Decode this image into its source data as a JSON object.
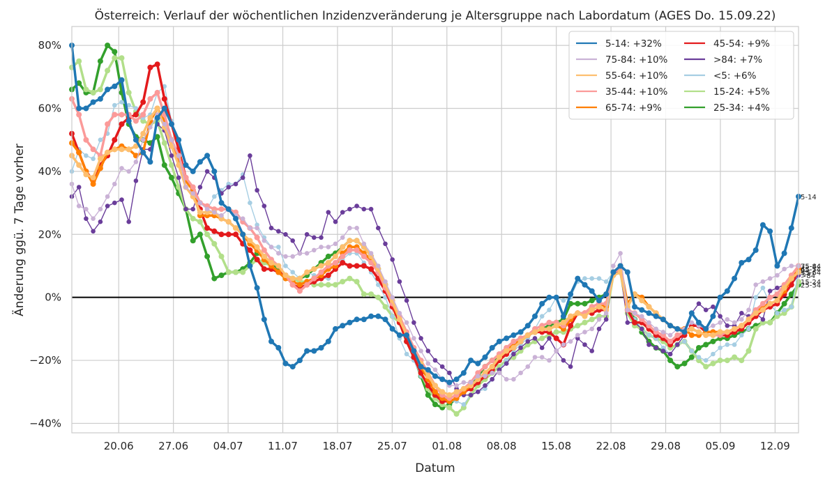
{
  "chart_data": {
    "type": "line",
    "title": "Österreich: Verlauf der wöchentlichen Inzidenzveränderung je Altersgruppe nach Labordatum (AGES Do. 15.09.22)",
    "xlabel": "Datum",
    "ylabel": "Änderung ggü. 7 Tage vorher",
    "x_ticks": [
      "20.06",
      "27.06",
      "04.07",
      "11.07",
      "18.07",
      "25.07",
      "01.08",
      "08.08",
      "15.08",
      "22.08",
      "29.08",
      "05.09",
      "12.09"
    ],
    "y_ticks": [
      "−40%",
      "−20%",
      "0%",
      "20%",
      "40%",
      "60%",
      "80%"
    ],
    "y_tick_values": [
      -40,
      -20,
      0,
      20,
      40,
      60,
      80
    ],
    "ylim": [
      -43,
      86
    ],
    "x_start": "2022-06-14",
    "x_end": "2022-09-15",
    "grid": true,
    "legend_position": "top-right",
    "series": [
      {
        "name": "5-14: +32%",
        "end_label": "5-14",
        "color": "#1f77b4",
        "bold": true,
        "values": [
          80,
          60,
          60,
          62,
          63,
          66,
          67,
          69,
          56,
          50,
          46,
          43,
          57,
          60,
          55,
          50,
          42,
          40,
          43,
          45,
          40,
          30,
          28,
          25,
          20,
          10,
          3,
          -7,
          -14,
          -16,
          -21,
          -22,
          -20,
          -17,
          -17,
          -16,
          -14,
          -10,
          -9,
          -8,
          -7,
          -7,
          -6,
          -6,
          -7,
          -10,
          -12,
          -12,
          -17,
          -22,
          -23,
          -25,
          -26,
          -27,
          -26,
          -24,
          -20,
          -21,
          -19,
          -16,
          -14,
          -13,
          -12,
          -11,
          -9,
          -6,
          -2,
          0,
          0,
          -6,
          1,
          6,
          4,
          2,
          -1,
          1,
          8,
          10,
          8,
          -3,
          -4,
          -5,
          -6,
          -7,
          -9,
          -10,
          -11,
          -5,
          -8,
          -10,
          -6,
          0,
          2,
          6,
          11,
          12,
          15,
          23,
          21,
          10,
          14,
          22,
          32
        ]
      },
      {
        "name": "75-84: +10%",
        "end_label": "75-84",
        "color": "#cab2d6",
        "bold": false,
        "values": [
          36,
          29,
          28,
          25,
          28,
          32,
          36,
          41,
          40,
          43,
          50,
          54,
          58,
          55,
          50,
          45,
          35,
          33,
          30,
          28,
          27,
          26,
          28,
          26,
          25,
          22,
          22,
          18,
          16,
          14,
          13,
          13,
          14,
          14,
          15,
          16,
          16,
          17,
          19,
          22,
          22,
          17,
          14,
          10,
          5,
          0,
          -5,
          -8,
          -13,
          -17,
          -21,
          -23,
          -26,
          -28,
          -28,
          -27,
          -27,
          -25,
          -25,
          -24,
          -24,
          -26,
          -26,
          -24,
          -22,
          -19,
          -19,
          -20,
          -17,
          -15,
          -14,
          -12,
          -11,
          -10,
          -7,
          -5,
          10,
          14,
          -4,
          -5,
          -6,
          -8,
          -10,
          -11,
          -12,
          -10,
          -10,
          -8,
          -9,
          -10,
          -9,
          -8,
          -7,
          -8,
          -7,
          -4,
          4,
          5,
          6,
          7,
          9,
          10,
          10
        ]
      },
      {
        "name": "55-64: +10%",
        "end_label": "55-64",
        "color": "#fdbf6f",
        "bold": true,
        "values": [
          45,
          42,
          39,
          38,
          44,
          46,
          47,
          47,
          47,
          48,
          52,
          57,
          60,
          54,
          48,
          42,
          35,
          32,
          27,
          27,
          27,
          25,
          24,
          22,
          20,
          18,
          16,
          13,
          11,
          10,
          7,
          6,
          6,
          8,
          9,
          10,
          11,
          13,
          16,
          18,
          18,
          16,
          13,
          9,
          4,
          -1,
          -7,
          -12,
          -17,
          -21,
          -25,
          -28,
          -30,
          -31,
          -30,
          -29,
          -28,
          -26,
          -24,
          -22,
          -19,
          -17,
          -16,
          -14,
          -12,
          -11,
          -10,
          -10,
          -9,
          -8,
          -6,
          -5,
          -6,
          -4,
          -3,
          -4,
          7,
          8,
          -3,
          1,
          -1,
          -3,
          -5,
          -7,
          -9,
          -10,
          -11,
          -10,
          -11,
          -12,
          -12,
          -11,
          -11,
          -10,
          -9,
          -7,
          -5,
          -4,
          -2,
          -1,
          3,
          6,
          8
        ]
      },
      {
        "name": "35-44: +10%",
        "end_label": "35-44",
        "color": "#fb9a99",
        "bold": true,
        "values": [
          63,
          58,
          50,
          47,
          45,
          55,
          58,
          58,
          58,
          56,
          58,
          63,
          65,
          58,
          50,
          45,
          38,
          35,
          30,
          29,
          28,
          28,
          28,
          27,
          24,
          22,
          19,
          15,
          12,
          10,
          7,
          4,
          2,
          4,
          6,
          8,
          10,
          11,
          13,
          15,
          15,
          13,
          11,
          8,
          3,
          -2,
          -6,
          -11,
          -16,
          -20,
          -24,
          -28,
          -31,
          -32,
          -31,
          -29,
          -27,
          -24,
          -22,
          -20,
          -18,
          -16,
          -14,
          -13,
          -12,
          -10,
          -9,
          -8,
          -8,
          -9,
          -6,
          -5,
          -5,
          -3,
          -2,
          -2,
          8,
          9,
          -4,
          -5,
          -7,
          -9,
          -11,
          -12,
          -14,
          -12,
          -11,
          -10,
          -11,
          -12,
          -12,
          -12,
          -11,
          -10,
          -9,
          -7,
          -4,
          -2,
          0,
          1,
          4,
          7,
          10
        ]
      },
      {
        "name": "65-74: +9%",
        "end_label": "65-74",
        "color": "#ff7f00",
        "bold": true,
        "values": [
          49,
          46,
          40,
          36,
          41,
          46,
          47,
          48,
          47,
          45,
          46,
          56,
          60,
          56,
          50,
          44,
          37,
          34,
          26,
          26,
          26,
          25,
          24,
          22,
          20,
          17,
          15,
          12,
          10,
          8,
          6,
          5,
          4,
          5,
          6,
          7,
          9,
          10,
          14,
          16,
          16,
          14,
          12,
          8,
          3,
          -2,
          -7,
          -12,
          -17,
          -22,
          -26,
          -30,
          -32,
          -33,
          -32,
          -30,
          -28,
          -26,
          -24,
          -22,
          -19,
          -17,
          -15,
          -13,
          -12,
          -11,
          -10,
          -10,
          -9,
          -10,
          -7,
          -5,
          -5,
          -3,
          -2,
          -3,
          8,
          10,
          -2,
          1,
          0,
          -3,
          -5,
          -7,
          -9,
          -10,
          -10,
          -12,
          -12,
          -11,
          -11,
          -11,
          -11,
          -10,
          -9,
          -7,
          -5,
          -3,
          -2,
          -1,
          2,
          6,
          9
        ]
      },
      {
        "name": "45-54: +9%",
        "end_label": "45-54",
        "color": "#e31a1c",
        "bold": true,
        "values": [
          52,
          46,
          40,
          37,
          42,
          45,
          50,
          55,
          57,
          58,
          62,
          73,
          74,
          63,
          55,
          47,
          38,
          34,
          28,
          22,
          21,
          20,
          20,
          20,
          17,
          15,
          12,
          9,
          9,
          8,
          7,
          4,
          3,
          4,
          5,
          6,
          7,
          9,
          11,
          10,
          10,
          10,
          9,
          6,
          2,
          -3,
          -8,
          -14,
          -19,
          -24,
          -28,
          -31,
          -33,
          -33,
          -32,
          -30,
          -29,
          -27,
          -25,
          -23,
          -20,
          -18,
          -16,
          -14,
          -12,
          -11,
          -11,
          -11,
          -13,
          -15,
          -9,
          -5,
          -5,
          -5,
          -4,
          -4,
          8,
          9,
          -4,
          -8,
          -8,
          -10,
          -12,
          -13,
          -15,
          -13,
          -12,
          -9,
          -9,
          -11,
          -11,
          -12,
          -12,
          -11,
          -10,
          -8,
          -6,
          -4,
          -3,
          -2,
          1,
          4,
          9
        ]
      },
      {
        "name": ">84: +7%",
        "end_label": ">84",
        "color": "#6a3d9a",
        "bold": false,
        "values": [
          32,
          35,
          25,
          21,
          24,
          29,
          30,
          31,
          24,
          37,
          47,
          47,
          55,
          53,
          45,
          38,
          28,
          28,
          35,
          40,
          38,
          33,
          35,
          36,
          38,
          45,
          34,
          29,
          22,
          21,
          20,
          18,
          14,
          20,
          19,
          19,
          27,
          24,
          27,
          28,
          29,
          28,
          28,
          22,
          17,
          12,
          5,
          -1,
          -8,
          -13,
          -17,
          -20,
          -22,
          -24,
          -29,
          -31,
          -31,
          -30,
          -28,
          -26,
          -23,
          -21,
          -18,
          -16,
          -14,
          -13,
          -16,
          -13,
          -17,
          -20,
          -22,
          -13,
          -15,
          -17,
          -10,
          -7,
          8,
          8,
          -8,
          -8,
          -10,
          -15,
          -16,
          -17,
          -18,
          -15,
          -12,
          -5,
          -2,
          -4,
          -3,
          -6,
          -9,
          -9,
          -5,
          -6,
          -5,
          -7,
          2,
          3,
          4,
          4,
          7
        ]
      },
      {
        "name": "<5: +6%",
        "end_label": "<5",
        "color": "#a6cee3",
        "bold": false,
        "values": [
          40,
          47,
          45,
          44,
          50,
          52,
          61,
          62,
          61,
          60,
          57,
          58,
          65,
          67,
          56,
          48,
          38,
          33,
          30,
          28,
          32,
          34,
          36,
          36,
          39,
          30,
          23,
          19,
          16,
          16,
          10,
          8,
          6,
          8,
          7,
          6,
          6,
          10,
          12,
          14,
          14,
          11,
          8,
          4,
          0,
          -6,
          -13,
          -18,
          -20,
          -25,
          -28,
          -30,
          -31,
          -33,
          -33,
          -34,
          -31,
          -30,
          -29,
          -26,
          -23,
          -20,
          -17,
          -15,
          -13,
          -10,
          -6,
          -4,
          0,
          -1,
          0,
          5,
          6,
          6,
          6,
          5,
          8,
          9,
          -4,
          -7,
          -10,
          -12,
          -13,
          -16,
          -18,
          -15,
          -14,
          -17,
          -19,
          -20,
          -18,
          -16,
          -15,
          -15,
          -12,
          -10,
          0,
          3,
          -2,
          -5,
          -4,
          -3,
          8
        ]
      },
      {
        "name": "15-24: +5%",
        "end_label": "15-24",
        "color": "#b2df8a",
        "bold": true,
        "values": [
          73,
          75,
          66,
          65,
          66,
          72,
          76,
          76,
          65,
          59,
          56,
          55,
          56,
          49,
          42,
          35,
          28,
          25,
          24,
          20,
          17,
          13,
          8,
          8,
          8,
          10,
          12,
          11,
          10,
          8,
          6,
          6,
          5,
          5,
          4,
          4,
          4,
          4,
          5,
          6,
          5,
          1,
          1,
          0,
          -3,
          -6,
          -8,
          -13,
          -18,
          -24,
          -29,
          -32,
          -34,
          -35,
          -37,
          -35,
          -31,
          -28,
          -26,
          -24,
          -22,
          -20,
          -19,
          -17,
          -15,
          -14,
          -13,
          -12,
          -11,
          -11,
          -10,
          -9,
          -8,
          -7,
          -6,
          -6,
          7,
          8,
          -5,
          -9,
          -10,
          -12,
          -13,
          -14,
          -16,
          -15,
          -14,
          -17,
          -20,
          -22,
          -21,
          -20,
          -20,
          -19,
          -20,
          -17,
          -10,
          -8,
          -8,
          -6,
          -5,
          -3,
          5
        ]
      },
      {
        "name": "25-34: +4%",
        "end_label": "25-34",
        "color": "#33a02c",
        "bold": true,
        "values": [
          66,
          68,
          65,
          65,
          75,
          80,
          78,
          65,
          55,
          51,
          50,
          49,
          51,
          42,
          38,
          33,
          28,
          18,
          20,
          13,
          6,
          7,
          8,
          8,
          9,
          11,
          14,
          13,
          11,
          9,
          7,
          6,
          6,
          7,
          9,
          11,
          13,
          14,
          16,
          18,
          18,
          16,
          13,
          9,
          4,
          -2,
          -8,
          -14,
          -19,
          -25,
          -31,
          -34,
          -35,
          -34,
          -32,
          -30,
          -28,
          -25,
          -22,
          -20,
          -19,
          -17,
          -15,
          -14,
          -12,
          -11,
          -10,
          -9,
          -8,
          -7,
          -2,
          -2,
          -2,
          -1,
          0,
          1,
          8,
          8,
          -3,
          -7,
          -11,
          -14,
          -16,
          -17,
          -20,
          -22,
          -21,
          -19,
          -16,
          -15,
          -14,
          -13,
          -13,
          -12,
          -11,
          -10,
          -9,
          -8,
          -8,
          -5,
          -2,
          1,
          4
        ]
      }
    ]
  }
}
